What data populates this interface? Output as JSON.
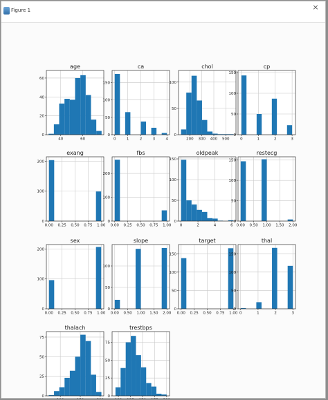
{
  "window": {
    "title": "Figure 1",
    "close_glyph": "×"
  },
  "colors": {
    "bar": "#1f77b4",
    "grid": "#c8c8c8",
    "axes": "#333333",
    "text": "#222222"
  },
  "chart_data": [
    {
      "type": "bar",
      "title": "age",
      "xlim": [
        27,
        79
      ],
      "ylim": [
        0,
        68
      ],
      "xticks": [
        40,
        60
      ],
      "yticks": [
        0,
        20,
        40,
        60
      ],
      "grid": true,
      "bins": [
        [
          29,
          33.8,
          1
        ],
        [
          33.8,
          38.6,
          11
        ],
        [
          38.6,
          43.4,
          33
        ],
        [
          43.4,
          48.2,
          38
        ],
        [
          48.2,
          53,
          37
        ],
        [
          53,
          57.8,
          60
        ],
        [
          57.8,
          62.6,
          63
        ],
        [
          62.6,
          67.4,
          42
        ],
        [
          67.4,
          72.2,
          16
        ],
        [
          72.2,
          77,
          4
        ]
      ]
    },
    {
      "type": "bar",
      "title": "ca",
      "xlim": [
        -0.2,
        4.2
      ],
      "ylim": [
        0,
        185
      ],
      "xticks": [
        0,
        1,
        2,
        3,
        4
      ],
      "yticks": [
        0,
        50,
        100,
        150
      ],
      "grid": true,
      "bins": [
        [
          0,
          0.4,
          175
        ],
        [
          0.8,
          1.2,
          65
        ],
        [
          1.6,
          2,
          0
        ],
        [
          2,
          2.4,
          38
        ],
        [
          2.8,
          3.2,
          20
        ],
        [
          3.6,
          4,
          5
        ]
      ]
    },
    {
      "type": "bar",
      "title": "chol",
      "xlim": [
        105,
        585
      ],
      "ylim": [
        0,
        122
      ],
      "xticks": [
        200,
        300,
        400,
        500
      ],
      "yticks": [
        0,
        50,
        100
      ],
      "grid": true,
      "bins": [
        [
          126,
          169.8,
          10
        ],
        [
          169.8,
          213.6,
          80
        ],
        [
          213.6,
          257.4,
          112
        ],
        [
          257.4,
          301.2,
          65
        ],
        [
          301.2,
          345,
          28
        ],
        [
          345,
          388.8,
          6
        ],
        [
          388.8,
          432.6,
          2
        ],
        [
          432.6,
          476.4,
          1
        ],
        [
          476.4,
          520.2,
          1
        ],
        [
          520.2,
          564,
          1
        ]
      ]
    },
    {
      "type": "bar",
      "title": "cp",
      "xlim": [
        -0.2,
        3.2
      ],
      "ylim": [
        0,
        155
      ],
      "xticks": [
        0,
        1,
        2,
        3
      ],
      "yticks": [
        0,
        50,
        100,
        150
      ],
      "grid": true,
      "bins": [
        [
          0,
          0.3,
          143
        ],
        [
          0.9,
          1.2,
          50
        ],
        [
          1.8,
          2.1,
          87
        ],
        [
          2.7,
          3,
          23
        ]
      ]
    },
    {
      "type": "bar",
      "title": "exang",
      "xlim": [
        -0.05,
        1.05
      ],
      "ylim": [
        0,
        215
      ],
      "xticks": [
        0.0,
        0.25,
        0.5,
        0.75,
        1.0
      ],
      "yticks": [
        0,
        100,
        200
      ],
      "grid": true,
      "bins": [
        [
          0,
          0.1,
          204
        ],
        [
          0.9,
          1,
          99
        ]
      ]
    },
    {
      "type": "bar",
      "title": "fbs",
      "xlim": [
        -0.05,
        1.05
      ],
      "ylim": [
        0,
        270
      ],
      "xticks": [
        0.0,
        0.25,
        0.5,
        0.75,
        1.0
      ],
      "yticks": [
        0,
        100,
        200
      ],
      "grid": true,
      "bins": [
        [
          0,
          0.1,
          258
        ],
        [
          0.9,
          1,
          45
        ]
      ]
    },
    {
      "type": "bar",
      "title": "oldpeak",
      "xlim": [
        -0.3,
        6.5
      ],
      "ylim": [
        0,
        155
      ],
      "xticks": [
        0,
        2,
        4,
        6
      ],
      "yticks": [
        0,
        50,
        100,
        150
      ],
      "grid": true,
      "bins": [
        [
          0,
          0.62,
          148
        ],
        [
          0.62,
          1.24,
          50
        ],
        [
          1.24,
          1.86,
          40
        ],
        [
          1.86,
          2.48,
          27
        ],
        [
          2.48,
          3.1,
          22
        ],
        [
          3.1,
          3.72,
          7
        ],
        [
          3.72,
          4.34,
          6
        ],
        [
          4.34,
          4.96,
          1
        ],
        [
          4.96,
          5.58,
          0
        ],
        [
          5.58,
          6.2,
          2
        ]
      ]
    },
    {
      "type": "bar",
      "title": "restecg",
      "xlim": [
        -0.1,
        2.1
      ],
      "ylim": [
        0,
        158
      ],
      "xticks": [
        0.0,
        0.5,
        1.0,
        1.5,
        2.0
      ],
      "yticks": [
        0,
        50,
        100,
        150
      ],
      "grid": true,
      "bins": [
        [
          0,
          0.2,
          147
        ],
        [
          0.8,
          1,
          152
        ],
        [
          1.8,
          2,
          4
        ]
      ]
    },
    {
      "type": "bar",
      "title": "sex",
      "xlim": [
        -0.05,
        1.05
      ],
      "ylim": [
        0,
        215
      ],
      "xticks": [
        0.0,
        0.25,
        0.5,
        0.75,
        1.0
      ],
      "yticks": [
        0,
        100,
        200
      ],
      "grid": true,
      "bins": [
        [
          0,
          0.1,
          96
        ],
        [
          0.9,
          1,
          207
        ]
      ]
    },
    {
      "type": "bar",
      "title": "slope",
      "xlim": [
        -0.1,
        2.1
      ],
      "ylim": [
        0,
        150
      ],
      "xticks": [
        0.0,
        0.5,
        1.0,
        1.5,
        2.0
      ],
      "yticks": [
        0,
        50,
        100
      ],
      "grid": true,
      "bins": [
        [
          0,
          0.2,
          21
        ],
        [
          0.8,
          1,
          140
        ],
        [
          1.8,
          2,
          142
        ]
      ]
    },
    {
      "type": "bar",
      "title": "target",
      "xlim": [
        -0.05,
        1.05
      ],
      "ylim": [
        0,
        175
      ],
      "xticks": [
        0.0,
        0.25,
        0.5,
        0.75,
        1.0
      ],
      "yticks": [
        0,
        50,
        100,
        150
      ],
      "grid": true,
      "bins": [
        [
          0,
          0.1,
          138
        ],
        [
          0.9,
          1,
          165
        ]
      ]
    },
    {
      "type": "bar",
      "title": "thal",
      "xlim": [
        -0.15,
        3.15
      ],
      "ylim": [
        0,
        175
      ],
      "xticks": [
        0,
        1,
        2,
        3
      ],
      "yticks": [
        0,
        50,
        100,
        150
      ],
      "grid": true,
      "bins": [
        [
          0,
          0.3,
          2
        ],
        [
          0.9,
          1.2,
          18
        ],
        [
          1.8,
          2.1,
          166
        ],
        [
          2.7,
          3,
          117
        ]
      ]
    },
    {
      "type": "bar",
      "title": "thalach",
      "xlim": [
        65,
        209
      ],
      "ylim": [
        0,
        82
      ],
      "xticks": [
        100,
        150,
        200
      ],
      "yticks": [
        0,
        25,
        50,
        75
      ],
      "grid": true,
      "bins": [
        [
          71,
          84.2,
          1
        ],
        [
          84.2,
          97.4,
          6
        ],
        [
          97.4,
          110.6,
          11
        ],
        [
          110.6,
          123.8,
          23
        ],
        [
          123.8,
          137,
          32
        ],
        [
          137,
          150.2,
          50
        ],
        [
          150.2,
          163.4,
          78
        ],
        [
          163.4,
          176.6,
          70
        ],
        [
          176.6,
          189.8,
          27
        ],
        [
          189.8,
          203,
          5
        ]
      ]
    },
    {
      "type": "bar",
      "title": "trestbps",
      "xlim": [
        87,
        206
      ],
      "ylim": [
        0,
        90
      ],
      "xticks": [
        100,
        125,
        150,
        175,
        200
      ],
      "yticks": [
        0,
        25,
        50,
        75
      ],
      "grid": true,
      "bins": [
        [
          94,
          104.6,
          12
        ],
        [
          104.6,
          115.2,
          39
        ],
        [
          115.2,
          125.8,
          75
        ],
        [
          125.8,
          136.4,
          84
        ],
        [
          136.4,
          147,
          57
        ],
        [
          147,
          157.6,
          40
        ],
        [
          157.6,
          168.2,
          18
        ],
        [
          168.2,
          178.8,
          13
        ],
        [
          178.8,
          189.4,
          3
        ],
        [
          189.4,
          200,
          2
        ]
      ]
    }
  ]
}
